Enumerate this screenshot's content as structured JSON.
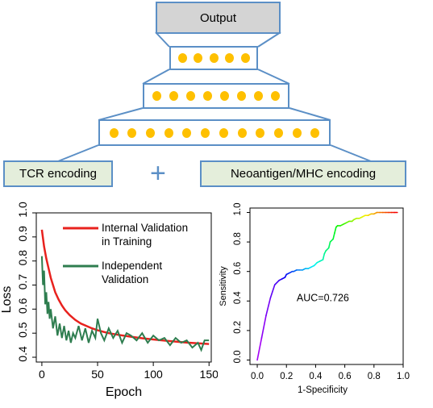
{
  "network": {
    "output_label": "Output",
    "layers": [
      5,
      8,
      12
    ],
    "tcr_label": "TCR encoding",
    "neo_label": "Neoantigen/MHC encoding",
    "plus_symbol": "+",
    "colors": {
      "box_border": "#5b8fc6",
      "dot": "#fec000",
      "output_fill": "#d4d4d4",
      "encoding_fill": "#e4eedb"
    }
  },
  "chart_data": [
    {
      "type": "line",
      "xlabel": "Epoch",
      "ylabel": "Loss",
      "xlim": [
        -5,
        152
      ],
      "ylim": [
        0.38,
        1.0
      ],
      "xticks": [
        0,
        50,
        100,
        150
      ],
      "yticks": [
        0.4,
        0.5,
        0.6,
        0.7,
        0.8,
        0.9,
        1.0
      ],
      "grid": false,
      "legend_position": "top-right",
      "series": [
        {
          "name": "Internal Validation in Training",
          "color": "#e8221e",
          "x": [
            0,
            2,
            4,
            6,
            8,
            10,
            12,
            15,
            18,
            21,
            25,
            30,
            35,
            40,
            45,
            50,
            60,
            70,
            80,
            90,
            100,
            110,
            120,
            130,
            140,
            150
          ],
          "y": [
            0.93,
            0.86,
            0.81,
            0.77,
            0.73,
            0.7,
            0.67,
            0.64,
            0.615,
            0.595,
            0.575,
            0.555,
            0.54,
            0.53,
            0.52,
            0.512,
            0.5,
            0.492,
            0.485,
            0.479,
            0.474,
            0.469,
            0.465,
            0.461,
            0.458,
            0.455
          ]
        },
        {
          "name": "Independent Validation",
          "color": "#2e7d4f",
          "x": [
            0,
            1,
            2,
            3,
            4,
            5,
            6,
            7,
            8,
            10,
            12,
            14,
            16,
            18,
            20,
            22,
            24,
            26,
            28,
            30,
            33,
            36,
            39,
            42,
            45,
            48,
            50,
            53,
            56,
            60,
            64,
            68,
            72,
            76,
            80,
            85,
            90,
            95,
            100,
            105,
            110,
            115,
            120,
            125,
            130,
            135,
            140,
            143,
            146,
            150
          ],
          "y": [
            0.82,
            0.7,
            0.76,
            0.62,
            0.67,
            0.58,
            0.63,
            0.56,
            0.6,
            0.52,
            0.57,
            0.49,
            0.54,
            0.48,
            0.53,
            0.47,
            0.51,
            0.46,
            0.5,
            0.48,
            0.53,
            0.47,
            0.52,
            0.46,
            0.51,
            0.48,
            0.56,
            0.5,
            0.47,
            0.52,
            0.48,
            0.51,
            0.46,
            0.5,
            0.49,
            0.47,
            0.5,
            0.46,
            0.49,
            0.47,
            0.48,
            0.45,
            0.48,
            0.46,
            0.47,
            0.44,
            0.46,
            0.43,
            0.47,
            0.47
          ]
        }
      ]
    },
    {
      "type": "line",
      "xlabel": "1-Specificity",
      "ylabel": "Sensitivity",
      "xlim": [
        -0.05,
        1.0
      ],
      "ylim": [
        -0.03,
        1.03
      ],
      "xticks": [
        0.0,
        0.2,
        0.4,
        0.6,
        0.8,
        1.0
      ],
      "yticks": [
        0.0,
        0.2,
        0.4,
        0.6,
        0.8,
        1.0
      ],
      "grid": false,
      "annotation": "AUC=0.726",
      "series": [
        {
          "color": "rainbow",
          "x": [
            0.0,
            0.03,
            0.06,
            0.09,
            0.12,
            0.15,
            0.17,
            0.19,
            0.2,
            0.22,
            0.24,
            0.25,
            0.27,
            0.29,
            0.31,
            0.33,
            0.35,
            0.37,
            0.39,
            0.41,
            0.43,
            0.45,
            0.46,
            0.47,
            0.49,
            0.5,
            0.52,
            0.53,
            0.54,
            0.55,
            0.57,
            0.59,
            0.61,
            0.63,
            0.65,
            0.66,
            0.68,
            0.7,
            0.72,
            0.74,
            0.76,
            0.78,
            0.8,
            0.82,
            0.84,
            0.86,
            0.88,
            0.9,
            0.92,
            0.94,
            0.96
          ],
          "y": [
            0.0,
            0.15,
            0.3,
            0.42,
            0.51,
            0.54,
            0.55,
            0.56,
            0.58,
            0.59,
            0.6,
            0.6,
            0.61,
            0.61,
            0.61,
            0.62,
            0.62,
            0.63,
            0.64,
            0.66,
            0.67,
            0.68,
            0.72,
            0.74,
            0.76,
            0.8,
            0.82,
            0.86,
            0.9,
            0.91,
            0.91,
            0.92,
            0.93,
            0.94,
            0.94,
            0.95,
            0.96,
            0.96,
            0.97,
            0.98,
            0.98,
            0.99,
            0.99,
            1.0,
            1.0,
            1.0,
            1.0,
            1.0,
            1.0,
            1.0,
            1.0
          ]
        }
      ]
    }
  ]
}
